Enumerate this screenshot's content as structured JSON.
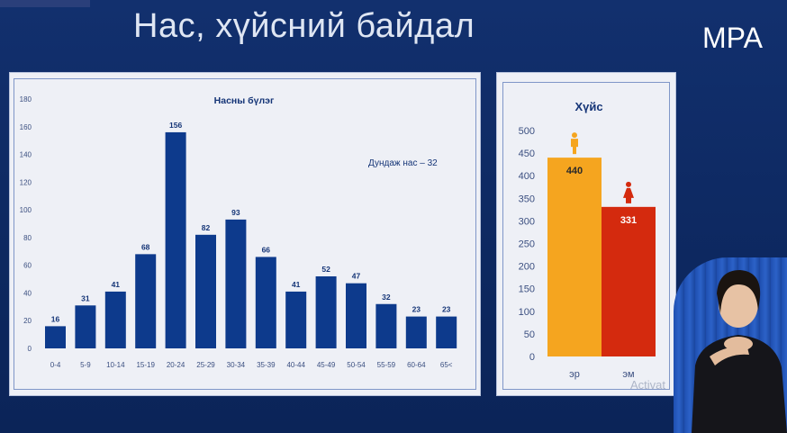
{
  "slide": {
    "title": "Нас, хүйсний байдал",
    "brand": "MPA"
  },
  "colors": {
    "background": "#0e2a63",
    "age_bar": "#0d3a8c",
    "male_bar": "#f5a51f",
    "female_bar": "#d42a0e"
  },
  "chart_data": [
    {
      "type": "bar",
      "title": "Насны бүлэг",
      "annotation": "Дундаж нас – 32",
      "categories": [
        "0-4",
        "5-9",
        "10-14",
        "15-19",
        "20-24",
        "25-29",
        "30-34",
        "35-39",
        "40-44",
        "45-49",
        "50-54",
        "55-59",
        "60-64",
        "65<"
      ],
      "values": [
        16,
        31,
        41,
        68,
        156,
        82,
        93,
        66,
        41,
        52,
        47,
        32,
        23,
        23
      ],
      "ylim": [
        0,
        180
      ],
      "yticks": [
        0,
        20,
        40,
        60,
        80,
        100,
        120,
        140,
        160,
        180
      ],
      "grid": false
    },
    {
      "type": "bar",
      "title": "Хүйс",
      "categories": [
        "эр",
        "эм"
      ],
      "values": [
        440,
        331
      ],
      "icons": [
        "male-person-icon",
        "female-person-icon"
      ],
      "ylim": [
        0,
        500
      ],
      "yticks": [
        0,
        50,
        100,
        150,
        200,
        250,
        300,
        350,
        400,
        450,
        500
      ],
      "grid": false
    }
  ],
  "overlay": {
    "watermark": "Activat"
  }
}
